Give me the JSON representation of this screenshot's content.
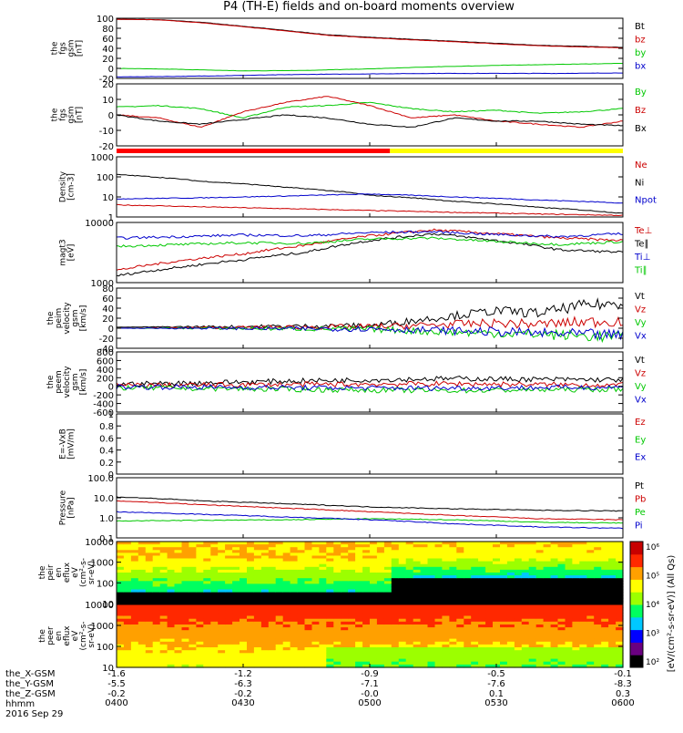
{
  "title": "P4 (TH-E) fields and on-board moments overview",
  "time": {
    "start": "0400",
    "end": "0600",
    "ticks": [
      "0400",
      "0430",
      "0500",
      "0530",
      "0600"
    ]
  },
  "ephemeris": [
    {
      "label": "the_X-GSM",
      "values": [
        "-1.6",
        "-1.2",
        "-0.9",
        "-0.5",
        "-0.1"
      ]
    },
    {
      "label": "the_Y-GSM",
      "values": [
        "-5.5",
        "-6.3",
        "-7.1",
        "-7.6",
        "-8.3"
      ]
    },
    {
      "label": "the_Z-GSM",
      "values": [
        "-0.2",
        "-0.2",
        "-0.0",
        "0.1",
        "0.3"
      ]
    },
    {
      "label": "hhmm",
      "values": []
    }
  ],
  "date": "2016 Sep 29",
  "colorbar": {
    "label": "[eV/(cm²-s-sr-eV)] (All Qs)",
    "ticks": [
      "10²",
      "10³",
      "10⁴",
      "10⁵",
      "10⁶"
    ],
    "colors": [
      "#000000",
      "#6a0080",
      "#0000ff",
      "#00c8ff",
      "#00ff60",
      "#9cff00",
      "#ffff00",
      "#ffa000",
      "#ff2800",
      "#c80000"
    ]
  },
  "chart_data": [
    {
      "id": "bfield",
      "type": "line",
      "ylabel": [
        "the",
        "fgs",
        "gsm",
        "[nT]"
      ],
      "ylim": [
        -20,
        100
      ],
      "yticks": [
        -20,
        0,
        20,
        40,
        60,
        80,
        100
      ],
      "series": [
        {
          "name": "Bt",
          "color": "#000000",
          "x": [
            0,
            10,
            20,
            35,
            50,
            60,
            70,
            85,
            100,
            120
          ],
          "y": [
            98,
            97,
            92,
            80,
            67,
            62,
            58,
            52,
            46,
            42
          ]
        },
        {
          "name": "bz",
          "color": "#cc0000",
          "x": [
            0,
            10,
            20,
            35,
            50,
            60,
            70,
            85,
            100,
            120
          ],
          "y": [
            98,
            97,
            91,
            79,
            66,
            61,
            57,
            51,
            45,
            41
          ]
        },
        {
          "name": "by",
          "color": "#00c800",
          "x": [
            0,
            15,
            30,
            45,
            60,
            75,
            90,
            105,
            120
          ],
          "y": [
            0,
            -2,
            -5,
            -4,
            -1,
            3,
            6,
            8,
            10
          ]
        },
        {
          "name": "bx",
          "color": "#0000cc",
          "x": [
            0,
            15,
            30,
            45,
            60,
            75,
            90,
            105,
            120
          ],
          "y": [
            -17,
            -16,
            -14,
            -12,
            -11,
            -10,
            -10,
            -10,
            -9
          ]
        }
      ]
    },
    {
      "id": "dbfield",
      "type": "line",
      "ylabel": [
        "the",
        "fgs",
        "gsm",
        "[nT]"
      ],
      "ylim": [
        -20,
        20
      ],
      "yticks": [
        -20,
        -10,
        0,
        10,
        20
      ],
      "series": [
        {
          "name": "By",
          "color": "#00c800",
          "x": [
            0,
            10,
            20,
            30,
            40,
            50,
            60,
            70,
            80,
            90,
            100,
            110,
            120
          ],
          "y": [
            5,
            6,
            4,
            -2,
            5,
            6,
            8,
            4,
            2,
            3,
            1,
            2,
            4
          ]
        },
        {
          "name": "Bz",
          "color": "#cc0000",
          "x": [
            0,
            10,
            20,
            30,
            40,
            50,
            60,
            70,
            80,
            90,
            100,
            110,
            120
          ],
          "y": [
            0,
            -2,
            -8,
            2,
            8,
            12,
            6,
            -2,
            0,
            -4,
            -6,
            -8,
            -4
          ]
        },
        {
          "name": "Bx",
          "color": "#000000",
          "x": [
            0,
            10,
            20,
            30,
            40,
            50,
            60,
            70,
            80,
            90,
            100,
            110,
            120
          ],
          "y": [
            0,
            -4,
            -6,
            -3,
            0,
            -2,
            -6,
            -8,
            -2,
            -4,
            -4,
            -6,
            -7
          ]
        }
      ]
    },
    {
      "id": "density",
      "type": "line",
      "ylabel": [
        "Density",
        "[cm-3]"
      ],
      "ylim": [
        1,
        1000
      ],
      "log": true,
      "yticks": [
        "1",
        "10",
        "100",
        "1000"
      ],
      "series": [
        {
          "name": "Ne",
          "color": "#cc0000",
          "x": [
            0,
            20,
            40,
            60,
            80,
            100,
            120
          ],
          "y": [
            4,
            3.2,
            2.6,
            2.1,
            1.7,
            1.4,
            1.2
          ]
        },
        {
          "name": "Ni",
          "color": "#000000",
          "x": [
            0,
            20,
            40,
            60,
            80,
            100,
            120
          ],
          "y": [
            130,
            60,
            30,
            12,
            6,
            3,
            1.5
          ]
        },
        {
          "name": "Npot",
          "color": "#0000cc",
          "x": [
            0,
            20,
            40,
            60,
            80,
            100,
            120
          ],
          "y": [
            8,
            9,
            11,
            14,
            10,
            7,
            5
          ]
        }
      ]
    },
    {
      "id": "temperature",
      "type": "line",
      "ylabel": [
        "magt3",
        "[eV]"
      ],
      "ylim": [
        1000,
        10000
      ],
      "log": true,
      "yticks": [
        "1000",
        "10000"
      ],
      "series": [
        {
          "name": "Te⊥",
          "color": "#cc0000",
          "x": [
            0,
            15,
            30,
            45,
            60,
            75,
            90,
            105,
            120
          ],
          "y": [
            1600,
            2300,
            3000,
            4200,
            6000,
            7500,
            6500,
            5500,
            5000
          ]
        },
        {
          "name": "Te∥",
          "color": "#000000",
          "x": [
            0,
            15,
            30,
            45,
            60,
            75,
            90,
            105,
            120
          ],
          "y": [
            1300,
            1800,
            2400,
            3200,
            5000,
            6500,
            5000,
            3500,
            3200
          ]
        },
        {
          "name": "Ti⊥",
          "color": "#0000cc",
          "x": [
            0,
            15,
            30,
            45,
            60,
            75,
            90,
            105,
            120
          ],
          "y": [
            5500,
            5800,
            6200,
            6000,
            6800,
            7000,
            6300,
            5800,
            6500
          ]
        },
        {
          "name": "Ti∥",
          "color": "#00c800",
          "x": [
            0,
            15,
            30,
            45,
            60,
            75,
            90,
            105,
            120
          ],
          "y": [
            4000,
            4300,
            4600,
            4500,
            5300,
            5500,
            4800,
            4300,
            4800
          ]
        }
      ]
    },
    {
      "id": "ion_velocity",
      "type": "line",
      "ylabel": [
        "the",
        "peim",
        "velocity",
        "gsm",
        "[km/s]"
      ],
      "ylim": [
        -40,
        80
      ],
      "yticks": [
        -40,
        -20,
        0,
        20,
        40,
        60,
        80
      ],
      "series": [
        {
          "name": "Vt",
          "color": "#000000",
          "x": [
            0,
            20,
            40,
            60,
            70,
            80,
            90,
            100,
            110,
            120
          ],
          "y": [
            2,
            3,
            4,
            5,
            15,
            25,
            35,
            30,
            45,
            50
          ]
        },
        {
          "name": "Vz",
          "color": "#cc0000",
          "x": [
            0,
            20,
            40,
            60,
            70,
            80,
            90,
            100,
            110,
            120
          ],
          "y": [
            0,
            1,
            2,
            3,
            5,
            8,
            10,
            8,
            12,
            15
          ]
        },
        {
          "name": "Vy",
          "color": "#00c800",
          "x": [
            0,
            20,
            40,
            60,
            70,
            80,
            90,
            100,
            110,
            120
          ],
          "y": [
            0,
            0,
            -1,
            -2,
            -5,
            -8,
            -10,
            -12,
            -15,
            -18
          ]
        },
        {
          "name": "Vx",
          "color": "#0000cc",
          "x": [
            0,
            20,
            40,
            60,
            70,
            80,
            90,
            100,
            110,
            120
          ],
          "y": [
            0,
            0,
            -1,
            -1,
            -3,
            -5,
            -7,
            -10,
            -12,
            -15
          ]
        }
      ]
    },
    {
      "id": "electron_velocity",
      "type": "line",
      "ylabel": [
        "the",
        "peem",
        "velocity",
        "gsm",
        "[km/s]"
      ],
      "ylim": [
        -600,
        800
      ],
      "yticks": [
        -600,
        -400,
        -200,
        0,
        200,
        400,
        600,
        800
      ],
      "series": [
        {
          "name": "Vt",
          "color": "#000000",
          "x": [
            0,
            20,
            40,
            60,
            80,
            100,
            120
          ],
          "y": [
            50,
            80,
            120,
            150,
            180,
            160,
            150
          ]
        },
        {
          "name": "Vz",
          "color": "#cc0000",
          "x": [
            0,
            20,
            40,
            60,
            80,
            100,
            120
          ],
          "y": [
            20,
            30,
            40,
            50,
            60,
            40,
            30
          ]
        },
        {
          "name": "Vy",
          "color": "#00c800",
          "x": [
            0,
            20,
            40,
            60,
            80,
            100,
            120
          ],
          "y": [
            -30,
            -50,
            -70,
            -90,
            -100,
            -80,
            -70
          ]
        },
        {
          "name": "Vx",
          "color": "#0000cc",
          "x": [
            0,
            20,
            40,
            60,
            80,
            100,
            120
          ],
          "y": [
            -10,
            -20,
            -30,
            -40,
            -40,
            -30,
            -20
          ]
        }
      ]
    },
    {
      "id": "efield",
      "type": "line",
      "ylabel": [
        "E=-VxB",
        "[mV/m]"
      ],
      "ylim": [
        0,
        1
      ],
      "yticks": [
        0,
        0.2,
        0.4,
        0.6,
        0.8,
        1.0
      ],
      "series": [
        {
          "name": "Ez",
          "color": "#cc0000",
          "x": [],
          "y": []
        },
        {
          "name": "Ey",
          "color": "#00c800",
          "x": [],
          "y": []
        },
        {
          "name": "Ex",
          "color": "#0000cc",
          "x": [],
          "y": []
        }
      ]
    },
    {
      "id": "pressure",
      "type": "line",
      "ylabel": [
        "Pressure",
        "[nPa]"
      ],
      "ylim": [
        0.1,
        100
      ],
      "log": true,
      "yticks": [
        "0.1",
        "1.0",
        "10.0",
        "100.0"
      ],
      "series": [
        {
          "name": "Pt",
          "color": "#000000",
          "x": [
            0,
            20,
            40,
            60,
            80,
            100,
            120
          ],
          "y": [
            11,
            7,
            5,
            3.5,
            2.8,
            2.4,
            2.2
          ]
        },
        {
          "name": "Pb",
          "color": "#cc0000",
          "x": [
            0,
            20,
            40,
            60,
            80,
            100,
            120
          ],
          "y": [
            7,
            4.5,
            3,
            2,
            1.3,
            0.9,
            0.8
          ]
        },
        {
          "name": "Pe",
          "color": "#00c800",
          "x": [
            0,
            20,
            40,
            60,
            80,
            100,
            120
          ],
          "y": [
            0.7,
            0.75,
            0.8,
            0.9,
            0.8,
            0.6,
            0.55
          ]
        },
        {
          "name": "Pi",
          "color": "#0000cc",
          "x": [
            0,
            20,
            40,
            60,
            80,
            100,
            120
          ],
          "y": [
            2,
            1.5,
            1.1,
            0.8,
            0.5,
            0.35,
            0.3
          ]
        }
      ]
    },
    {
      "id": "ion_spectrogram",
      "type": "heatmap",
      "ylabel": [
        "the",
        "peir",
        "en",
        "eflux",
        "eV",
        "(cm²-s-",
        "sr-eV)"
      ],
      "ylim": [
        10,
        10000
      ],
      "log": true,
      "yticks": [
        "10",
        "100",
        "1000",
        "10000"
      ]
    },
    {
      "id": "electron_spectrogram",
      "type": "heatmap",
      "ylabel": [
        "the",
        "peer",
        "en",
        "eflux",
        "eV",
        "(cm²-s-",
        "sr-eV)"
      ],
      "ylim": [
        10,
        10000
      ],
      "log": true,
      "yticks": [
        "10",
        "100",
        "1000",
        "10000"
      ]
    }
  ]
}
